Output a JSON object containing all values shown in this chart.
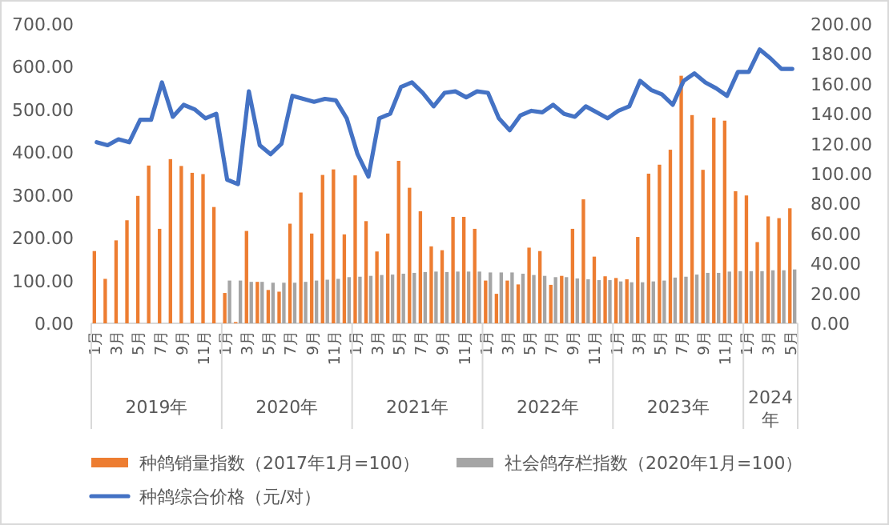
{
  "chart_data": {
    "type": "bar",
    "categories": [
      "1月",
      null,
      "3月",
      null,
      "5月",
      null,
      "7月",
      null,
      "9月",
      null,
      "11月",
      null,
      "1月",
      null,
      "3月",
      null,
      "5月",
      null,
      "7月",
      null,
      "9月",
      null,
      "11月",
      null,
      "1月",
      null,
      "3月",
      null,
      "5月",
      null,
      "7月",
      null,
      "9月",
      null,
      "11月",
      null,
      "1月",
      null,
      "3月",
      null,
      "5月",
      null,
      "7月",
      null,
      "9月",
      null,
      "11月",
      null,
      "1月",
      null,
      "3月",
      null,
      "5月",
      null,
      "7月",
      null,
      "9月",
      null,
      "11月",
      null,
      "1月",
      null,
      "3月",
      null,
      "5月"
    ],
    "annotations": [
      "2019年",
      "2020年",
      "2021年",
      "2022年",
      "2023年",
      "2024年"
    ],
    "series": [
      {
        "name": "种鸽销量指数（2017年1月=100）",
        "color": "#ed7d31",
        "values": [
          169,
          104,
          194,
          241,
          298,
          369,
          221,
          384,
          368,
          352,
          349,
          272,
          71,
          3,
          216,
          97,
          78,
          74,
          233,
          306,
          210,
          347,
          360,
          208,
          346,
          239,
          168,
          210,
          380,
          317,
          262,
          180,
          171,
          249,
          249,
          221,
          100,
          69,
          100,
          91,
          177,
          169,
          90,
          111,
          221,
          290,
          156,
          110,
          106,
          103,
          202,
          350,
          371,
          406,
          579,
          487,
          359,
          481,
          474,
          309,
          299,
          190,
          250,
          246,
          269
        ]
      },
      {
        "name": "社会鸽存栏指数（2020年1月=100）",
        "color": "#a5a5a5",
        "values": [
          null,
          null,
          null,
          null,
          null,
          null,
          null,
          null,
          null,
          null,
          null,
          null,
          100,
          100,
          97,
          97,
          95,
          95,
          95,
          97,
          100,
          102,
          104,
          108,
          109,
          111,
          113,
          114,
          116,
          118,
          120,
          121,
          120,
          121,
          121,
          121,
          119,
          119,
          119,
          116,
          113,
          111,
          108,
          108,
          105,
          103,
          101,
          101,
          98,
          96,
          96,
          98,
          100,
          107,
          109,
          114,
          118,
          118,
          121,
          122,
          122,
          122,
          124,
          124,
          126
        ]
      },
      {
        "name": "种鸽综合价格（元/对）",
        "color": "#4472c4",
        "type": "line",
        "axis": "y2",
        "values": [
          121,
          119,
          123,
          121,
          136,
          136,
          161,
          138,
          146,
          143,
          137,
          140,
          96,
          93,
          155,
          119,
          113,
          120,
          152,
          150,
          148,
          150,
          149,
          137,
          113,
          98,
          137,
          140,
          158,
          161,
          154,
          145,
          154,
          155,
          151,
          155,
          154,
          137,
          129,
          139,
          142,
          141,
          146,
          140,
          138,
          145,
          141,
          137,
          142,
          145,
          162,
          156,
          153,
          146,
          162,
          167,
          161,
          157,
          152,
          168,
          168,
          183,
          177,
          170,
          170
        ]
      }
    ],
    "ylim": [
      0,
      700
    ],
    "yticks": [
      {
        "value": 0,
        "label": "0.00"
      },
      {
        "value": 100,
        "label": "100.00"
      },
      {
        "value": 200,
        "label": "200.00"
      },
      {
        "value": 300,
        "label": "300.00"
      },
      {
        "value": 400,
        "label": "400.00"
      },
      {
        "value": 500,
        "label": "500.00"
      },
      {
        "value": 600,
        "label": "600.00"
      },
      {
        "value": 700,
        "label": "700.00"
      }
    ],
    "y2lim": [
      0,
      200
    ],
    "y2ticks": [
      {
        "value": 0,
        "label": "0.00"
      },
      {
        "value": 20,
        "label": "20.00"
      },
      {
        "value": 40,
        "label": "40.00"
      },
      {
        "value": 60,
        "label": "60.00"
      },
      {
        "value": 80,
        "label": "80.00"
      },
      {
        "value": 100,
        "label": "100.00"
      },
      {
        "value": 120,
        "label": "120.00"
      },
      {
        "value": 140,
        "label": "140.00"
      },
      {
        "value": 160,
        "label": "160.00"
      },
      {
        "value": 180,
        "label": "180.00"
      },
      {
        "value": 200,
        "label": "200.00"
      }
    ],
    "legend": "bottom",
    "grid": false
  }
}
